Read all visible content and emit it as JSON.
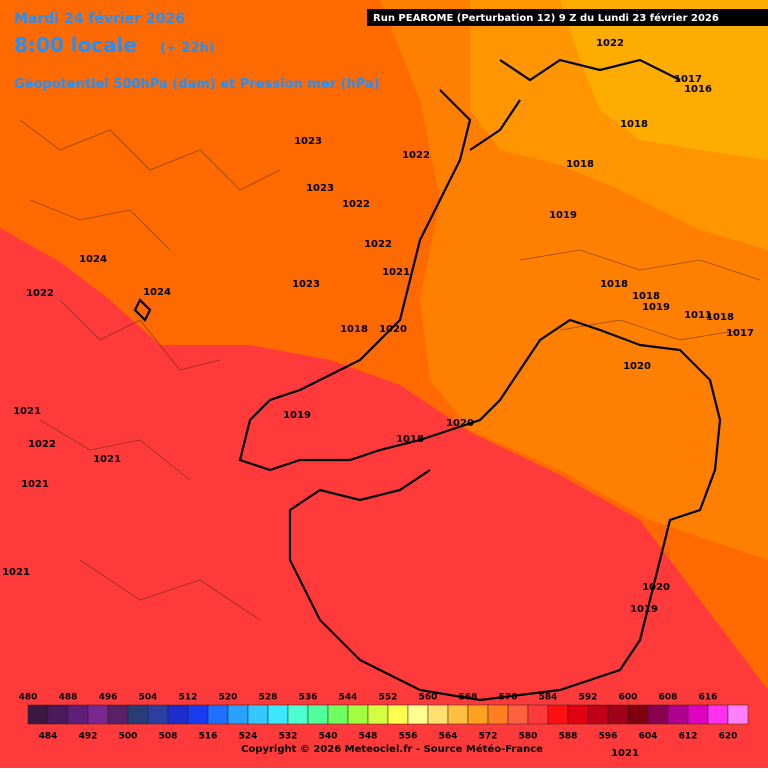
{
  "header": {
    "date": "Mardi 24 février 2026",
    "time": "8:00 locale",
    "lead": "(+ 22h)",
    "field": "Géopotentiel 500hPa (dam) et Pression mer (hPa)",
    "run": "Run PEAROME (Perturbation 12) 9 Z du Lundi 23 février 2026"
  },
  "pressure_labels": [
    1022,
    1017,
    1016,
    1018,
    1023,
    1022,
    1018,
    1023,
    1022,
    1019,
    1022,
    1024,
    1021,
    1023,
    1018,
    1022,
    1024,
    1018,
    1019,
    1020,
    1018,
    1018,
    1011,
    1017,
    1020,
    1021,
    1019,
    1020,
    1018,
    1022,
    1021,
    1021,
    1021,
    1020,
    1019,
    1021
  ],
  "colorbar": {
    "levels": [
      480,
      484,
      488,
      492,
      496,
      500,
      504,
      508,
      512,
      516,
      520,
      524,
      528,
      532,
      536,
      540,
      544,
      548,
      552,
      556,
      560,
      564,
      568,
      572,
      576,
      580,
      584,
      588,
      592,
      596,
      600,
      604,
      608,
      612,
      616,
      620
    ],
    "colors": [
      "#3b1840",
      "#4a1a5c",
      "#5e1f78",
      "#7a2790",
      "#5a2266",
      "#283c78",
      "#2a3fa0",
      "#1e2ccc",
      "#1a3cf0",
      "#2070ff",
      "#2aa0ff",
      "#34c8ff",
      "#3ce8ff",
      "#4cffd0",
      "#50ff9c",
      "#70ff60",
      "#a0ff40",
      "#d4ff40",
      "#ffff50",
      "#ffff90",
      "#ffe070",
      "#ffc040",
      "#ffa020",
      "#ff8020",
      "#ff6040",
      "#ff3a3a",
      "#ff1010",
      "#e00010",
      "#c00018",
      "#a00018",
      "#800010",
      "#880050",
      "#b00090",
      "#e000c0",
      "#ff30f0",
      "#ff80ff"
    ]
  },
  "footer": {
    "copyright": "Copyright © 2026 Meteociel.fr - Source Météo-France"
  }
}
